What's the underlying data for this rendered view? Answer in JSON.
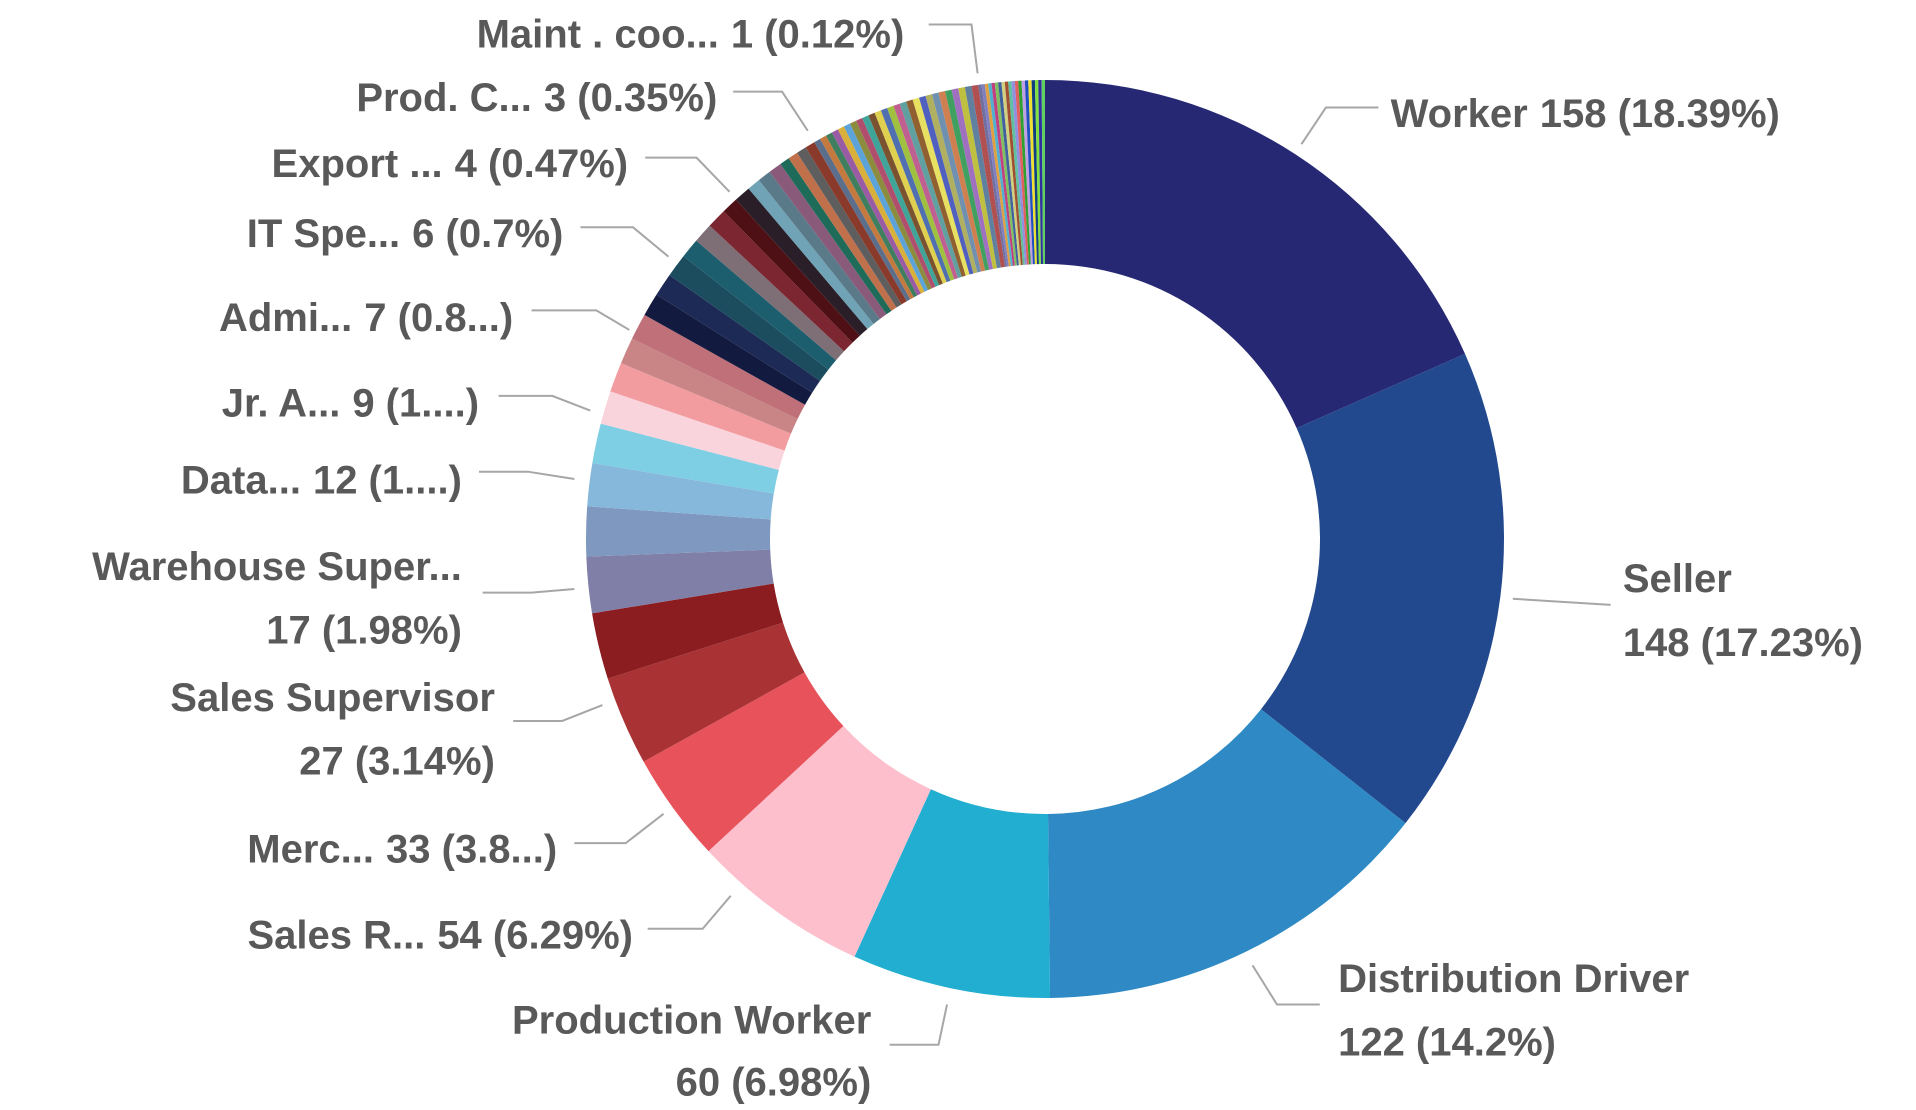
{
  "chart_data": {
    "type": "donut",
    "categories": [
      "Worker",
      "Seller",
      "Distribution Driver",
      "Production Worker",
      "Sales R...",
      "Merc...",
      "Sales Supervisor",
      null,
      "Warehouse Super...",
      null,
      null,
      "Data...",
      null,
      "Jr. A...",
      null,
      null,
      "Admi...",
      null,
      null,
      "IT Spe...",
      null,
      null,
      null,
      null,
      "Export ...",
      null,
      null,
      null,
      null,
      null,
      "Prod. C...",
      null,
      null,
      null,
      null,
      null,
      null,
      null,
      null,
      null,
      null,
      null,
      null,
      null,
      null,
      null,
      null,
      null,
      null,
      null,
      null,
      null,
      null,
      null,
      null,
      null,
      null,
      "Maint . coo...",
      null,
      null,
      null,
      null,
      null,
      null,
      null,
      null,
      null,
      null,
      null,
      null,
      null,
      null,
      null,
      null,
      null,
      null,
      null
    ],
    "values": [
      158,
      148,
      122,
      60,
      54,
      33,
      27,
      20,
      17,
      15,
      13,
      12,
      10,
      9,
      8,
      8,
      7,
      7,
      7,
      6,
      6,
      6,
      5,
      5,
      4,
      4,
      4,
      3,
      3,
      3,
      3,
      2,
      2,
      2,
      2,
      2,
      2,
      2,
      2,
      2,
      2,
      2,
      2,
      2,
      2,
      2,
      2,
      2,
      2,
      2,
      2,
      2,
      2,
      2,
      2,
      2,
      2,
      1,
      1,
      1,
      1,
      1,
      1,
      1,
      1,
      1,
      1,
      1,
      1,
      1,
      1,
      1,
      1,
      1,
      1,
      1,
      1
    ],
    "value_labels": [
      "158 (18.39%)",
      "148 (17.23%)",
      "122 (14.2%)",
      "60 (6.98%)",
      "54 (6.29%)",
      "33 (3.8...)",
      "27 (3.14%)",
      null,
      "17 (1.98%)",
      null,
      null,
      "12 (1....)",
      null,
      "9 (1....)",
      null,
      null,
      "7 (0.8...)",
      null,
      null,
      "6 (0.7%)",
      null,
      null,
      null,
      null,
      "4 (0.47%)",
      null,
      null,
      null,
      null,
      null,
      "3 (0.35%)",
      null,
      null,
      null,
      null,
      null,
      null,
      null,
      null,
      null,
      null,
      null,
      null,
      null,
      null,
      null,
      null,
      null,
      null,
      null,
      null,
      null,
      null,
      null,
      null,
      null,
      null,
      "1 (0.12%)",
      null,
      null,
      null,
      null,
      null,
      null,
      null,
      null,
      null,
      null,
      null,
      null,
      null,
      null,
      null,
      null,
      null,
      null,
      null
    ],
    "colors": [
      "#262873",
      "#22488E",
      "#2E89C4",
      "#22AED1",
      "#FDBFCC",
      "#E8525B",
      "#A83234",
      "#8B1C1F",
      "#7F7FA8",
      "#7F98BF",
      "#86B8DC",
      "#7ECFE3",
      "#FAD4DC",
      "#F29CA0",
      "#C98585",
      "#BF7079",
      "#131A40",
      "#1C2A55",
      "#1B4D5E",
      "#1D5E6E",
      "#7E6E76",
      "#7B2630",
      "#4E1015",
      "#2A1F28",
      "#6FA3B5",
      "#5A7A8A",
      "#8A5A7A",
      "#1F6B5A",
      "#C0704A",
      "#5E5E5E",
      "#8A3A2A",
      "#5B6E8C",
      "#C47A3E",
      "#3F7F5F",
      "#9A5BA5",
      "#D9B13A",
      "#5BA3D9",
      "#8C8C3F",
      "#B04E6E",
      "#3FA59A",
      "#7A5230",
      "#E0D050",
      "#4F6FB0",
      "#A0C040",
      "#C06090",
      "#60A0A0",
      "#906030",
      "#E8E060",
      "#5060C0",
      "#B0B060",
      "#7090B0",
      "#D08050",
      "#40A060",
      "#A070C0",
      "#C0C040",
      "#6080A0",
      "#B05050",
      "#7070A0",
      "#8080C0",
      "#E0A040",
      "#50B0D0",
      "#C04080",
      "#80C060",
      "#4060A0",
      "#D0D080",
      "#A05030",
      "#60C0A0",
      "#9090E0",
      "#E06060",
      "#30A030",
      "#C0A0E0",
      "#2050C0",
      "#F0E030",
      "#104080",
      "#80E040",
      "#3030A0",
      "#60D060"
    ]
  }
}
